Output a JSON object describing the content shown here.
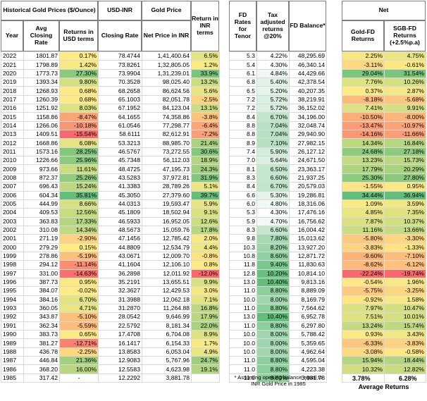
{
  "headers": {
    "historical": "Historical Gold Prices ($/Ounce)",
    "year": "Year",
    "avg_closing_rate": "Avg Closing Rate",
    "returns_usd": "Returns in USD terms",
    "usd_inr": "USD-INR",
    "closing_rate": "Closing Rate",
    "gold_price": "Gold Price",
    "net_price_inr": "Net Price in INR",
    "returns_inr": "Return in INR terms",
    "fd_rates": "FD Rates for Tenor",
    "tax_adjusted": "Tax adjusted returns @20%",
    "fd_balance": "FD Balance*",
    "net": "Net",
    "gold_fd_returns": "Gold-FD Returns",
    "sgb_fd_returns": "SGB-FD Returns (+2.5%p.a)"
  },
  "rows": [
    {
      "year": "2022",
      "gold": "1801.87",
      "ret_usd": "0.17%",
      "usdinr": "78.4744",
      "inr_price": "1,41,400.64",
      "ret_inr": "6.5%",
      "fd": "5.3",
      "tax": "4.22%",
      "bal": "48,295.69",
      "gfd": "2.25%",
      "sgb": "4.75%"
    },
    {
      "year": "2021",
      "gold": "1798.89",
      "ret_usd": "1.42%",
      "usdinr": "73.8261",
      "inr_price": "1,32,805.05",
      "ret_inr": "1.2%",
      "fd": "5.4",
      "tax": "4.30%",
      "bal": "46,340.14",
      "gfd": "-3.11%",
      "sgb": "-0.61%"
    },
    {
      "year": "2020",
      "gold": "1773.73",
      "ret_usd": "27.30%",
      "usdinr": "73.9904",
      "inr_price": "1,31,239.01",
      "ret_inr": "33.9%",
      "fd": "6.1",
      "tax": "4.84%",
      "bal": "44,429.66",
      "gfd": "29.04%",
      "sgb": "31.54%"
    },
    {
      "year": "2019",
      "gold": "1393.34",
      "ret_usd": "9.80%",
      "usdinr": "70.3528",
      "inr_price": "98,025.40",
      "ret_inr": "13.2%",
      "fd": "6.8",
      "tax": "5.40%",
      "bal": "42,378.54",
      "gfd": "7.76%",
      "sgb": "10.26%"
    },
    {
      "year": "2018",
      "gold": "1268.93",
      "ret_usd": "0.68%",
      "usdinr": "68.2658",
      "inr_price": "86,624.56",
      "ret_inr": "5.6%",
      "fd": "6.5",
      "tax": "5.20%",
      "bal": "40,207.35",
      "gfd": "0.37%",
      "sgb": "2.87%"
    },
    {
      "year": "2017",
      "gold": "1260.39",
      "ret_usd": "0.68%",
      "usdinr": "65.1003",
      "inr_price": "82,051.78",
      "ret_inr": "-2.5%",
      "fd": "7.2",
      "tax": "5.72%",
      "bal": "38,219.91",
      "gfd": "-8.18%",
      "sgb": "-5.68%"
    },
    {
      "year": "2016",
      "gold": "1251.92",
      "ret_usd": "8.03%",
      "usdinr": "67.1952",
      "inr_price": "84,123.04",
      "ret_inr": "13.1%",
      "fd": "7.2",
      "tax": "5.72%",
      "bal": "36,152.02",
      "gfd": "7.41%",
      "sgb": "9.91%"
    },
    {
      "year": "2015",
      "gold": "1158.86",
      "ret_usd": "-8.47%",
      "usdinr": "64.1655",
      "inr_price": "74,358.86",
      "ret_inr": "-3.8%",
      "fd": "8.4",
      "tax": "6.70%",
      "bal": "34,196.00",
      "gfd": "-10.50%",
      "sgb": "-8.00%"
    },
    {
      "year": "2014",
      "gold": "1266.06",
      "ret_usd": "-10.18%",
      "usdinr": "61.0546",
      "inr_price": "77,298.77",
      "ret_inr": "-6.4%",
      "fd": "8.8",
      "tax": "7.04%",
      "bal": "32,048.74",
      "gfd": "-13.47%",
      "sgb": "-10.97%"
    },
    {
      "year": "2013",
      "gold": "1409.51",
      "ret_usd": "-15.54%",
      "usdinr": "58.6111",
      "inr_price": "82,612.91",
      "ret_inr": "-7.2%",
      "fd": "8.8",
      "tax": "7.04%",
      "bal": "29,940.90",
      "gfd": "-14.16%",
      "sgb": "-11.66%"
    },
    {
      "year": "2012",
      "gold": "1668.86",
      "ret_usd": "6.08%",
      "usdinr": "53.3213",
      "inr_price": "88,985.70",
      "ret_inr": "21.4%",
      "fd": "8.9",
      "tax": "7.10%",
      "bal": "27,982.15",
      "gfd": "14.34%",
      "sgb": "16.84%"
    },
    {
      "year": "2011",
      "gold": "1573.16",
      "ret_usd": "28.25%",
      "usdinr": "46.5767",
      "inr_price": "73,272.55",
      "ret_inr": "30.6%",
      "fd": "7.4",
      "tax": "5.90%",
      "bal": "26,127.12",
      "gfd": "24.68%",
      "sgb": "27.18%"
    },
    {
      "year": "2010",
      "gold": "1226.66",
      "ret_usd": "25.96%",
      "usdinr": "45.7348",
      "inr_price": "56,112.03",
      "ret_inr": "18.9%",
      "fd": "7.0",
      "tax": "5.64%",
      "bal": "24,671.50",
      "gfd": "13.23%",
      "sgb": "15.73%"
    },
    {
      "year": "2009",
      "gold": "973.66",
      "ret_usd": "11.61%",
      "usdinr": "48.4725",
      "inr_price": "47,195.73",
      "ret_inr": "24.3%",
      "fd": "8.1",
      "tax": "6.50%",
      "bal": "23,363.17",
      "gfd": "17.79%",
      "sgb": "20.29%"
    },
    {
      "year": "2008",
      "gold": "872.37",
      "ret_usd": "25.26%",
      "usdinr": "43.5283",
      "inr_price": "37,972.81",
      "ret_inr": "31.9%",
      "fd": "8.3",
      "tax": "6.60%",
      "bal": "21,937.25",
      "gfd": "25.30%",
      "sgb": "27.80%"
    },
    {
      "year": "2007",
      "gold": "696.43",
      "ret_usd": "15.24%",
      "usdinr": "41.3383",
      "inr_price": "28,789.26",
      "ret_inr": "5.1%",
      "fd": "8.4",
      "tax": "6.70%",
      "bal": "20,579.03",
      "gfd": "-1.55%",
      "sgb": "0.95%"
    },
    {
      "year": "2006",
      "gold": "604.34",
      "ret_usd": "35.81%",
      "usdinr": "45.3050",
      "inr_price": "27,379.60",
      "ret_inr": "39.7%",
      "fd": "6.6",
      "tax": "5.30%",
      "bal": "19,286.81",
      "gfd": "34.44%",
      "sgb": "36.94%"
    },
    {
      "year": "2005",
      "gold": "444.99",
      "ret_usd": "8.66%",
      "usdinr": "44.0313",
      "inr_price": "19,593.47",
      "ret_inr": "5.9%",
      "fd": "6.0",
      "tax": "4.80%",
      "bal": "18,316.06",
      "gfd": "1.09%",
      "sgb": "3.59%"
    },
    {
      "year": "2004",
      "gold": "409.53",
      "ret_usd": "12.56%",
      "usdinr": "45.1809",
      "inr_price": "18,502.94",
      "ret_inr": "9.1%",
      "fd": "5.3",
      "tax": "4.30%",
      "bal": "17,476.16",
      "gfd": "4.85%",
      "sgb": "7.35%"
    },
    {
      "year": "2003",
      "gold": "363.83",
      "ret_usd": "17.33%",
      "usdinr": "46.5933",
      "inr_price": "16,952.05",
      "ret_inr": "12.6%",
      "fd": "5.9",
      "tax": "4.70%",
      "bal": "16,756.62",
      "gfd": "7.87%",
      "sgb": "10.37%"
    },
    {
      "year": "2002",
      "gold": "310.08",
      "ret_usd": "14.34%",
      "usdinr": "48.5673",
      "inr_price": "15,059.76",
      "ret_inr": "17.8%",
      "fd": "8.3",
      "tax": "6.60%",
      "bal": "16,004.42",
      "gfd": "11.16%",
      "sgb": "13.66%"
    },
    {
      "year": "2001",
      "gold": "271.19",
      "ret_usd": "-2.90%",
      "usdinr": "47.1456",
      "inr_price": "12,785.42",
      "ret_inr": "2.0%",
      "fd": "9.8",
      "tax": "7.80%",
      "bal": "15,013.62",
      "gfd": "-5.80%",
      "sgb": "-3.30%"
    },
    {
      "year": "2000",
      "gold": "279.29",
      "ret_usd": "0.15%",
      "usdinr": "44.8809",
      "inr_price": "12,534.79",
      "ret_inr": "4.4%",
      "fd": "10.3",
      "tax": "8.20%",
      "bal": "13,927.20",
      "gfd": "-3.83%",
      "sgb": "-1.33%"
    },
    {
      "year": "1999",
      "gold": "278.86",
      "ret_usd": "-5.19%",
      "usdinr": "43.0671",
      "inr_price": "12,009.70",
      "ret_inr": "-0.8%",
      "fd": "10.8",
      "tax": "8.60%",
      "bal": "12,871.72",
      "gfd": "-9.60%",
      "sgb": "-7.10%"
    },
    {
      "year": "1998",
      "gold": "294.12",
      "ret_usd": "-11.14%",
      "usdinr": "41.1604",
      "inr_price": "12,106.10",
      "ret_inr": "0.8%",
      "fd": "11.8",
      "tax": "9.40%",
      "bal": "11,830.63",
      "gfd": "-8.62%",
      "sgb": "-6.12%"
    },
    {
      "year": "1997",
      "gold": "331.00",
      "ret_usd": "-14.63%",
      "usdinr": "36.2898",
      "inr_price": "12,011.92",
      "ret_inr": "-12.0%",
      "fd": "12.8",
      "tax": "10.20%",
      "bal": "10,814.10",
      "gfd": "-22.24%",
      "sgb": "-19.74%"
    },
    {
      "year": "1996",
      "gold": "387.73",
      "ret_usd": "0.95%",
      "usdinr": "35.2191",
      "inr_price": "13,655.51",
      "ret_inr": "9.9%",
      "fd": "13.0",
      "tax": "10.40%",
      "bal": "9,813.16",
      "gfd": "-0.54%",
      "sgb": "1.96%"
    },
    {
      "year": "1995",
      "gold": "384.07",
      "ret_usd": "-0.02%",
      "usdinr": "32.3627",
      "inr_price": "12,429.53",
      "ret_inr": "3.0%",
      "fd": "11.0",
      "tax": "8.80%",
      "bal": "8,889.09",
      "gfd": "-5.75%",
      "sgb": "-3.25%"
    },
    {
      "year": "1994",
      "gold": "384.16",
      "ret_usd": "6.70%",
      "usdinr": "31.3988",
      "inr_price": "12,062.18",
      "ret_inr": "7.1%",
      "fd": "10.0",
      "tax": "8.00%",
      "bal": "8,169.79",
      "gfd": "-0.92%",
      "sgb": "1.58%"
    },
    {
      "year": "1993",
      "gold": "360.05",
      "ret_usd": "4.71%",
      "usdinr": "31.2870",
      "inr_price": "11,264.88",
      "ret_inr": "16.8%",
      "fd": "11.0",
      "tax": "8.80%",
      "bal": "7,564.62",
      "gfd": "7.97%",
      "sgb": "10.47%"
    },
    {
      "year": "1992",
      "gold": "343.87",
      "ret_usd": "-5.10%",
      "usdinr": "28.0542",
      "inr_price": "9,646.99",
      "ret_inr": "17.9%",
      "fd": "13.0",
      "tax": "10.40%",
      "bal": "6,952.78",
      "gfd": "7.51%",
      "sgb": "10.01%"
    },
    {
      "year": "1991",
      "gold": "362.34",
      "ret_usd": "-5.59%",
      "usdinr": "22.5792",
      "inr_price": "8,181.34",
      "ret_inr": "22.0%",
      "fd": "11.0",
      "tax": "8.80%",
      "bal": "6,297.80",
      "gfd": "13.24%",
      "sgb": "15.74%"
    },
    {
      "year": "1990",
      "gold": "383.73",
      "ret_usd": "0.65%",
      "usdinr": "17.4708",
      "inr_price": "6,704.08",
      "ret_inr": "8.9%",
      "fd": "10.0",
      "tax": "8.00%",
      "bal": "5,788.42",
      "gfd": "0.93%",
      "sgb": "3.43%"
    },
    {
      "year": "1989",
      "gold": "381.27",
      "ret_usd": "-12.71%",
      "usdinr": "16.1417",
      "inr_price": "6,154.33",
      "ret_inr": "1.7%",
      "fd": "10.0",
      "tax": "8.00%",
      "bal": "5,359.65",
      "gfd": "-6.33%",
      "sgb": "-3.83%"
    },
    {
      "year": "1988",
      "gold": "436.78",
      "ret_usd": "-2.25%",
      "usdinr": "13.8583",
      "inr_price": "6,053.04",
      "ret_inr": "4.9%",
      "fd": "10.0",
      "tax": "8.00%",
      "bal": "4,962.64",
      "gfd": "-3.08%",
      "sgb": "-0.58%"
    },
    {
      "year": "1987",
      "gold": "446.84",
      "ret_usd": "21.36%",
      "usdinr": "12.9083",
      "inr_price": "5,767.96",
      "ret_inr": "24.7%",
      "fd": "11.0",
      "tax": "8.80%",
      "bal": "4,595.04",
      "gfd": "15.94%",
      "sgb": "18.44%"
    },
    {
      "year": "1986",
      "gold": "368.20",
      "ret_usd": "16.00%",
      "usdinr": "12.5583",
      "inr_price": "4,623.98",
      "ret_inr": "19.1%",
      "fd": "11.0",
      "tax": "8.80%",
      "bal": "4,223.38",
      "gfd": "10.32%",
      "sgb": "12.82%"
    },
    {
      "year": "1985",
      "gold": "317.42",
      "ret_usd": "-",
      "usdinr": "12.2292",
      "inr_price": "3,881.78",
      "ret_inr": "",
      "fd": "11.0",
      "tax": "8.80%",
      "bal": "3,881.78",
      "gfd": "",
      "sgb": ""
    }
  ],
  "footnote": "* Assuming opening balance equal to INR Gold Price in 1985",
  "summary": {
    "avg_gold_fd": "3.78%",
    "avg_sgb_fd": "6.28%",
    "label": "Average Returns"
  },
  "colors": {
    "green_strong": "#63be7b",
    "yellow_mid": "#ffeb84",
    "red_strong": "#f8696b",
    "fd_low": "#ffffff",
    "fd_high": "#63be7b"
  }
}
